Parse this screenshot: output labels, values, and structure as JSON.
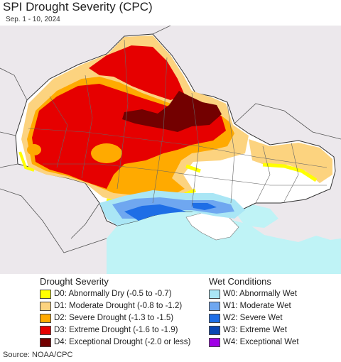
{
  "title": "SPI Drought Severity (CPC)",
  "subtitle": "Sep. 1 - 10, 2024",
  "map": {
    "region": "Ukraine and surrounding area",
    "colors": {
      "land_outside": "#ece8ec",
      "sea": "#bff3f6",
      "no_drought": "#ffffff",
      "border": "#555555"
    }
  },
  "legend": {
    "drought": {
      "title": "Drought Severity",
      "items": [
        {
          "label": "D0: Abnormally Dry (-0.5 to -0.7)",
          "color": "#ffff00"
        },
        {
          "label": "D1: Moderate Drought (-0.8 to -1.2)",
          "color": "#fcd37f"
        },
        {
          "label": "D2: Severe Drought (-1.3 to -1.5)",
          "color": "#ffaa00"
        },
        {
          "label": "D3: Extreme Drought (-1.6 to -1.9)",
          "color": "#e60000"
        },
        {
          "label": "D4: Exceptional Drought (-2.0 or less)",
          "color": "#730000"
        }
      ]
    },
    "wet": {
      "title": "Wet Conditions",
      "items": [
        {
          "label": "W0: Abnormally Wet",
          "color": "#aae6f5"
        },
        {
          "label": "W1: Moderate Wet",
          "color": "#6fa7f0"
        },
        {
          "label": "W2: Severe Wet",
          "color": "#1e6ee6"
        },
        {
          "label": "W3: Extreme Wet",
          "color": "#0a46b4"
        },
        {
          "label": "W4: Exceptional Wet",
          "color": "#a000e6"
        }
      ]
    }
  },
  "source": "Source: NOAA/CPC"
}
